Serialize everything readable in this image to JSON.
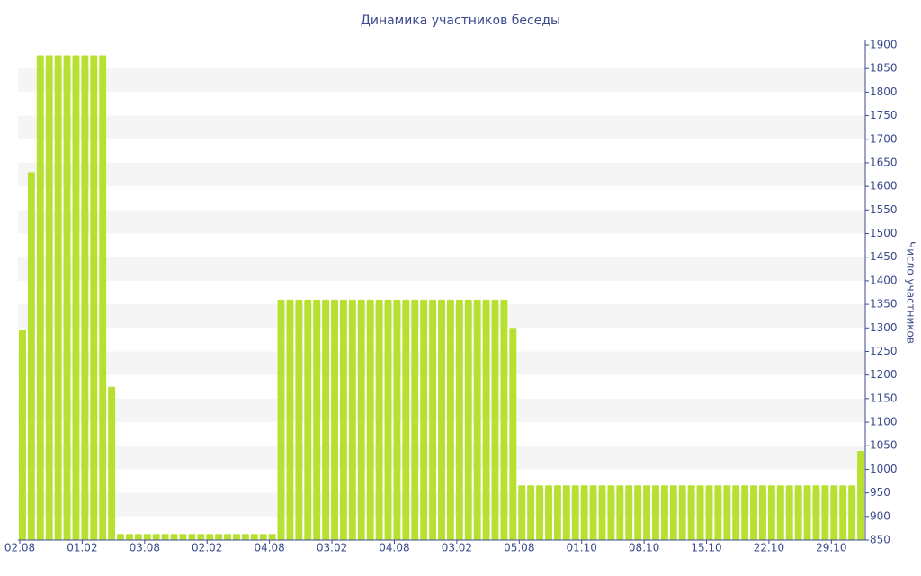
{
  "chart_data": {
    "type": "bar",
    "title": "Динамика участников беседы",
    "y_label": "Число участников",
    "color": "#b8e030",
    "categories": [
      "02.08",
      null,
      null,
      null,
      null,
      null,
      null,
      "01.02",
      null,
      null,
      null,
      null,
      null,
      null,
      "03.08",
      null,
      null,
      null,
      null,
      null,
      null,
      "02.02",
      null,
      null,
      null,
      null,
      null,
      null,
      "04.08",
      null,
      null,
      null,
      null,
      null,
      null,
      "03.02",
      null,
      null,
      null,
      null,
      null,
      null,
      "04.08",
      null,
      null,
      null,
      null,
      null,
      null,
      "03.02",
      null,
      null,
      null,
      null,
      null,
      null,
      "05.08",
      null,
      null,
      null,
      null,
      null,
      null,
      "01.10",
      null,
      null,
      null,
      null,
      null,
      null,
      "08.10",
      null,
      null,
      null,
      null,
      null,
      null,
      "15.10",
      null,
      null,
      null,
      null,
      null,
      null,
      "22.10",
      null,
      null,
      null,
      null,
      null,
      null,
      "29.10",
      null,
      null,
      null
    ],
    "values": [
      1295,
      1630,
      1878,
      1878,
      1878,
      1878,
      1878,
      1878,
      1878,
      1878,
      1175,
      863,
      863,
      863,
      863,
      863,
      863,
      863,
      863,
      863,
      863,
      863,
      863,
      863,
      863,
      863,
      863,
      863,
      863,
      1360,
      1360,
      1360,
      1360,
      1360,
      1360,
      1360,
      1360,
      1360,
      1360,
      1360,
      1360,
      1360,
      1360,
      1360,
      1360,
      1360,
      1360,
      1360,
      1360,
      1360,
      1360,
      1360,
      1360,
      1360,
      1360,
      1300,
      966,
      966,
      966,
      966,
      966,
      966,
      966,
      966,
      966,
      966,
      966,
      966,
      966,
      966,
      966,
      966,
      966,
      966,
      966,
      966,
      966,
      966,
      966,
      966,
      966,
      966,
      966,
      966,
      966,
      966,
      966,
      966,
      966,
      966,
      966,
      966,
      966,
      966,
      1039
    ],
    "ylim": [
      850,
      1900
    ],
    "yticks": [
      850,
      900,
      950,
      1000,
      1050,
      1100,
      1150,
      1200,
      1250,
      1300,
      1350,
      1400,
      1450,
      1500,
      1550,
      1600,
      1650,
      1700,
      1750,
      1800,
      1850,
      1900
    ],
    "grid": true
  }
}
